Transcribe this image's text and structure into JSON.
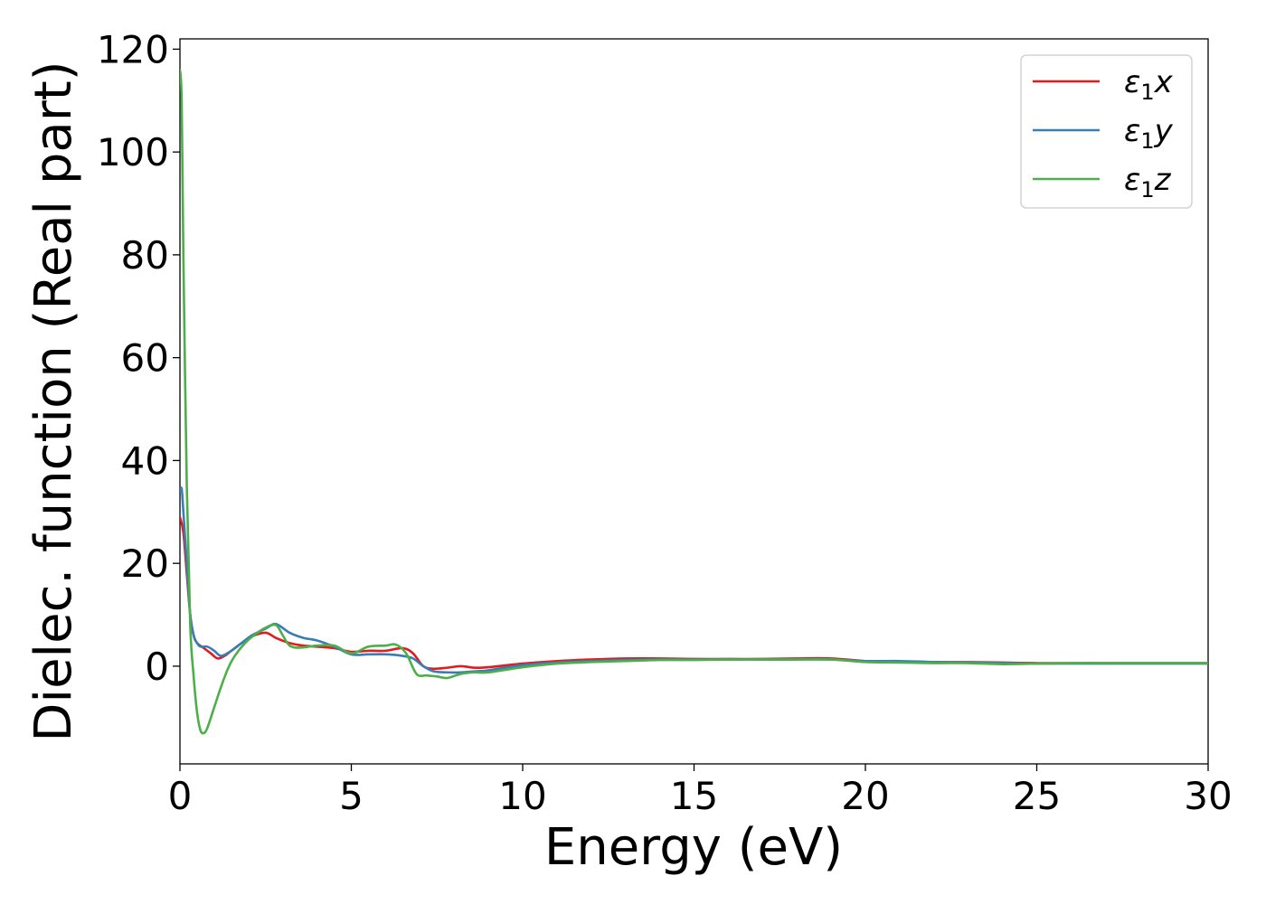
{
  "chart_data": {
    "type": "line",
    "title": "",
    "xlabel": "Energy (eV)",
    "ylabel": "Dielec. function (Real part)",
    "xlim": [
      0,
      30
    ],
    "ylim": [
      -19,
      122
    ],
    "xticks": [
      0,
      5,
      10,
      15,
      20,
      25,
      30
    ],
    "yticks": [
      0,
      20,
      40,
      60,
      80,
      100,
      120
    ],
    "grid": false,
    "legend_position": "top-right",
    "series": [
      {
        "name": "ε₁x",
        "legend": {
          "base": "ε",
          "sub": "1",
          "suffix": "x"
        },
        "color": "#e41a1c",
        "x": [
          0,
          0.1,
          0.2,
          0.3,
          0.4,
          0.5,
          0.7,
          0.9,
          1.1,
          1.3,
          1.5,
          1.8,
          2.1,
          2.5,
          2.8,
          3.2,
          3.6,
          4.0,
          4.5,
          5.0,
          5.5,
          6.0,
          6.5,
          6.8,
          7.1,
          7.4,
          7.8,
          8.2,
          8.6,
          9.0,
          10,
          11,
          12,
          13,
          14,
          15,
          16,
          17,
          18,
          19,
          20,
          21,
          22,
          23,
          24,
          25,
          26,
          27,
          28,
          29,
          30
        ],
        "y": [
          29,
          26,
          18,
          10,
          6,
          4.5,
          3.5,
          2.5,
          1.5,
          2,
          3,
          4.5,
          5.8,
          6.5,
          5.5,
          4.5,
          4.0,
          3.8,
          3.5,
          2.8,
          3.0,
          3.0,
          3.5,
          2.5,
          0,
          -0.5,
          -0.3,
          0,
          -0.3,
          -0.2,
          0.5,
          1.0,
          1.3,
          1.5,
          1.5,
          1.4,
          1.4,
          1.4,
          1.5,
          1.5,
          1.0,
          0.9,
          0.8,
          0.8,
          0.7,
          0.6,
          0.6,
          0.6,
          0.6,
          0.6,
          0.6
        ]
      },
      {
        "name": "ε₁y",
        "legend": {
          "base": "ε",
          "sub": "1",
          "suffix": "y"
        },
        "color": "#377eb8",
        "x": [
          0,
          0.05,
          0.1,
          0.2,
          0.3,
          0.4,
          0.5,
          0.6,
          0.8,
          1.0,
          1.2,
          1.5,
          1.8,
          2.1,
          2.5,
          2.8,
          3.2,
          3.6,
          4.0,
          4.5,
          5.0,
          5.5,
          6.0,
          6.5,
          6.8,
          7.1,
          7.4,
          7.8,
          8.2,
          8.6,
          9.0,
          10,
          11,
          12,
          13,
          14,
          15,
          16,
          17,
          18,
          19,
          20,
          21,
          22,
          23,
          24,
          25,
          26,
          27,
          28,
          29,
          30
        ],
        "y": [
          34,
          34.5,
          30,
          20,
          10,
          6,
          4.5,
          3.8,
          3.8,
          3,
          2,
          3,
          4.5,
          6,
          7.3,
          8.2,
          6.5,
          5.5,
          5.0,
          3.8,
          2.3,
          2.3,
          2.3,
          2,
          1.5,
          0,
          -1.0,
          -1.2,
          -1.2,
          -1.0,
          -0.8,
          0.2,
          0.7,
          1.0,
          1.2,
          1.3,
          1.3,
          1.3,
          1.3,
          1.3,
          1.3,
          1.0,
          1.0,
          0.8,
          0.7,
          0.6,
          0.5,
          0.5,
          0.5,
          0.5,
          0.5,
          0.5
        ]
      },
      {
        "name": "ε₁z",
        "legend": {
          "base": "ε",
          "sub": "1",
          "suffix": "z"
        },
        "color": "#4daf4a",
        "x": [
          0,
          0.05,
          0.1,
          0.2,
          0.3,
          0.4,
          0.5,
          0.6,
          0.7,
          0.8,
          1.0,
          1.2,
          1.4,
          1.6,
          1.9,
          2.2,
          2.5,
          2.8,
          3.0,
          3.2,
          3.5,
          4.0,
          4.5,
          5.0,
          5.5,
          6.0,
          6.3,
          6.6,
          6.9,
          7.2,
          7.5,
          7.8,
          8.2,
          8.6,
          9.0,
          10,
          11,
          12,
          13,
          14,
          15,
          16,
          17,
          18,
          19,
          20,
          21,
          22,
          23,
          24,
          25,
          26,
          27,
          28,
          29,
          30
        ],
        "y": [
          116,
          110,
          80,
          35,
          8,
          -2,
          -9,
          -12.5,
          -13,
          -12,
          -8,
          -4,
          -0.5,
          2,
          4.5,
          6.2,
          7.5,
          8,
          6,
          4.0,
          3.6,
          4.0,
          4.0,
          2.5,
          3.8,
          4.0,
          4.2,
          2.5,
          -1.5,
          -1.8,
          -2.0,
          -2.3,
          -1.5,
          -1.2,
          -1.2,
          -0.2,
          0.5,
          0.8,
          1.0,
          1.2,
          1.2,
          1.3,
          1.3,
          1.3,
          1.3,
          0.8,
          0.7,
          0.6,
          0.6,
          0.4,
          0.5,
          0.6,
          0.6,
          0.6,
          0.6,
          0.6
        ]
      }
    ]
  }
}
